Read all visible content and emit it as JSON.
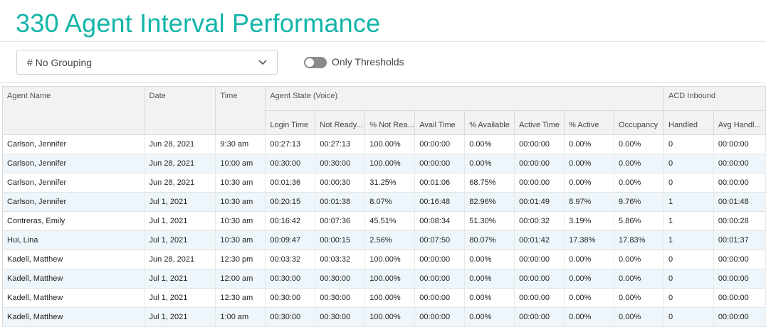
{
  "page": {
    "title": "330 Agent Interval Performance"
  },
  "controls": {
    "grouping_value": "# No Grouping",
    "toggle_label": "Only Thresholds",
    "toggle_on": false
  },
  "table": {
    "group_headers": {
      "agent_state": "Agent State (Voice)",
      "acd_inbound": "ACD Inbound"
    },
    "columns": [
      "Agent Name",
      "Date",
      "Time",
      "Login Time",
      "Not Ready...",
      "% Not Rea...",
      "Avail Time",
      "% Available",
      "Active Time",
      "% Active",
      "Occupancy",
      "Handled",
      "Avg Handl..."
    ],
    "rows": [
      [
        "Carlson, Jennifer",
        "Jun 28, 2021",
        "9:30 am",
        "00:27:13",
        "00:27:13",
        "100.00%",
        "00:00:00",
        "0.00%",
        "00:00:00",
        "0.00%",
        "0.00%",
        "0",
        "00:00:00"
      ],
      [
        "Carlson, Jennifer",
        "Jun 28, 2021",
        "10:00 am",
        "00:30:00",
        "00:30:00",
        "100.00%",
        "00:00:00",
        "0.00%",
        "00:00:00",
        "0.00%",
        "0.00%",
        "0",
        "00:00:00"
      ],
      [
        "Carlson, Jennifer",
        "Jun 28, 2021",
        "10:30 am",
        "00:01:36",
        "00:00:30",
        "31.25%",
        "00:01:06",
        "68.75%",
        "00:00:00",
        "0.00%",
        "0.00%",
        "0",
        "00:00:00"
      ],
      [
        "Carlson, Jennifer",
        "Jul 1, 2021",
        "10:30 am",
        "00:20:15",
        "00:01:38",
        "8.07%",
        "00:16:48",
        "82.96%",
        "00:01:49",
        "8.97%",
        "9.76%",
        "1",
        "00:01:48"
      ],
      [
        "Contreras, Emily",
        "Jul 1, 2021",
        "10:30 am",
        "00:16:42",
        "00:07:36",
        "45.51%",
        "00:08:34",
        "51.30%",
        "00:00:32",
        "3.19%",
        "5.86%",
        "1",
        "00:00:28"
      ],
      [
        "Hui, Lina",
        "Jul 1, 2021",
        "10:30 am",
        "00:09:47",
        "00:00:15",
        "2.56%",
        "00:07:50",
        "80.07%",
        "00:01:42",
        "17.38%",
        "17.83%",
        "1",
        "00:01:37"
      ],
      [
        "Kadell, Matthew",
        "Jun 28, 2021",
        "12:30 pm",
        "00:03:32",
        "00:03:32",
        "100.00%",
        "00:00:00",
        "0.00%",
        "00:00:00",
        "0.00%",
        "0.00%",
        "0",
        "00:00:00"
      ],
      [
        "Kadell, Matthew",
        "Jul 1, 2021",
        "12:00 am",
        "00:30:00",
        "00:30:00",
        "100.00%",
        "00:00:00",
        "0.00%",
        "00:00:00",
        "0.00%",
        "0.00%",
        "0",
        "00:00:00"
      ],
      [
        "Kadell, Matthew",
        "Jul 1, 2021",
        "12:30 am",
        "00:30:00",
        "00:30:00",
        "100.00%",
        "00:00:00",
        "0.00%",
        "00:00:00",
        "0.00%",
        "0.00%",
        "0",
        "00:00:00"
      ],
      [
        "Kadell, Matthew",
        "Jul 1, 2021",
        "1:00 am",
        "00:30:00",
        "00:30:00",
        "100.00%",
        "00:00:00",
        "0.00%",
        "00:00:00",
        "0.00%",
        "0.00%",
        "0",
        "00:00:00"
      ]
    ]
  },
  "colors": {
    "title": "#12b5a8",
    "toggle_off": "#8a8a8a",
    "row_stripe": "#eef6fb",
    "header_bg": "#f2f2f2"
  },
  "icons": {
    "select_chevron": "chevron-down-icon"
  }
}
